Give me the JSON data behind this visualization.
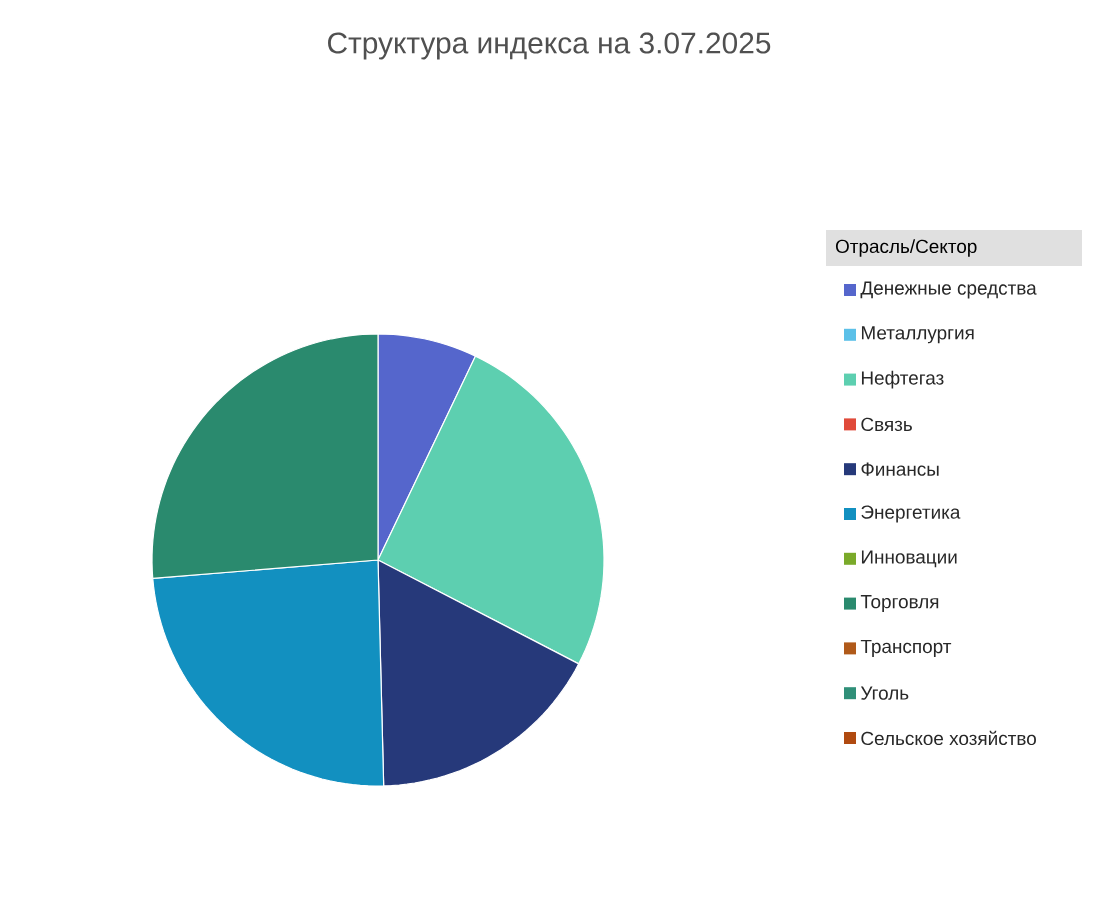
{
  "chart_data": {
    "type": "pie",
    "title": "Структура индекса на 3.07.2025",
    "legend_title": "Отрасль/Сектор",
    "legend": "right",
    "categories": [
      "Денежные средства",
      "Металлургия",
      "Нефтегаз",
      "Связь",
      "Финансы",
      "Энергетика",
      "Инновации",
      "Торговля",
      "Транспорт",
      "Уголь",
      "Сельское хозяйство"
    ],
    "values": [
      7.1,
      0,
      25.5,
      0,
      17.0,
      24.1,
      0,
      26.3,
      0,
      0,
      0
    ],
    "colors": [
      "#5566cc",
      "#5bc0e8",
      "#5dcfb0",
      "#e04a3a",
      "#26397a",
      "#1290c0",
      "#7aaa2a",
      "#2a8a6e",
      "#b05a1a",
      "#2f8f78",
      "#b04a10"
    ]
  }
}
